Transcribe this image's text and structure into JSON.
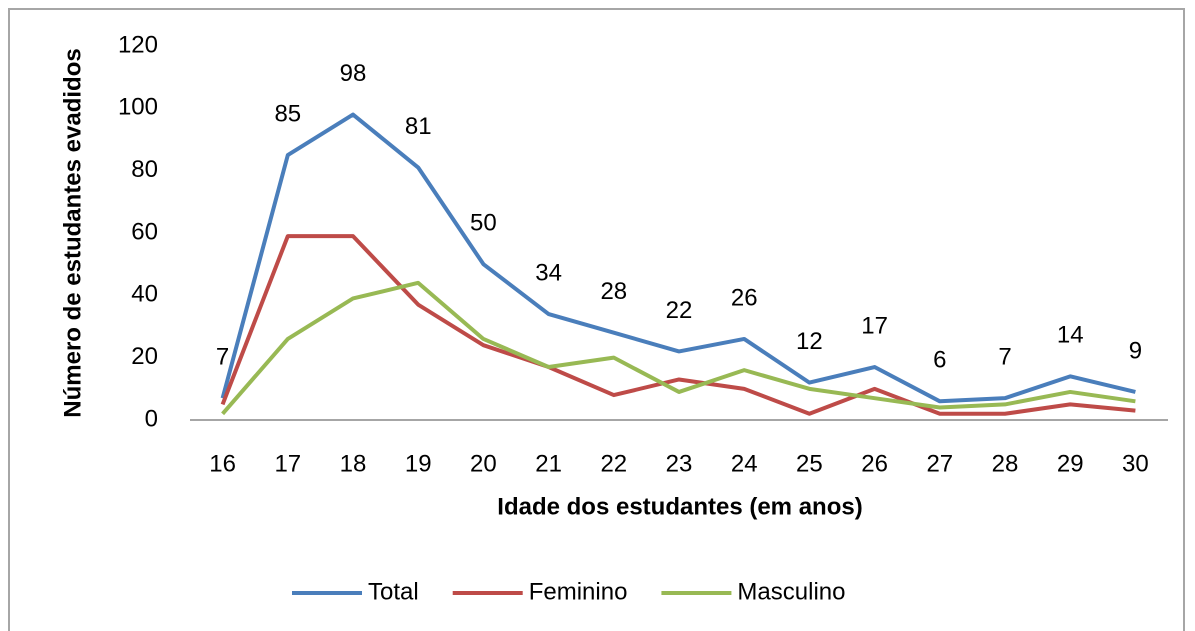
{
  "chart_data": {
    "type": "line",
    "x_label": "Idade dos estudantes (em anos)",
    "y_label": "Número de estudantes evadidos",
    "categories": [
      "16",
      "17",
      "18",
      "19",
      "20",
      "21",
      "22",
      "23",
      "24",
      "25",
      "26",
      "27",
      "28",
      "29",
      "30"
    ],
    "series": [
      {
        "name": "Total",
        "color": "#4a7ebb",
        "values": [
          7,
          85,
          98,
          81,
          50,
          34,
          28,
          22,
          26,
          12,
          17,
          6,
          7,
          14,
          9
        ],
        "data_labels": true
      },
      {
        "name": "Feminino",
        "color": "#be4b48",
        "values": [
          5,
          59,
          59,
          37,
          24,
          17,
          8,
          13,
          10,
          2,
          10,
          2,
          2,
          5,
          3
        ]
      },
      {
        "name": "Masculino",
        "color": "#98b954",
        "values": [
          2,
          26,
          39,
          44,
          26,
          17,
          20,
          9,
          16,
          10,
          7,
          4,
          5,
          9,
          6
        ]
      }
    ],
    "ylim": [
      0,
      120
    ],
    "yticks": [
      0,
      20,
      40,
      60,
      80,
      100,
      120
    ],
    "grid": false
  }
}
